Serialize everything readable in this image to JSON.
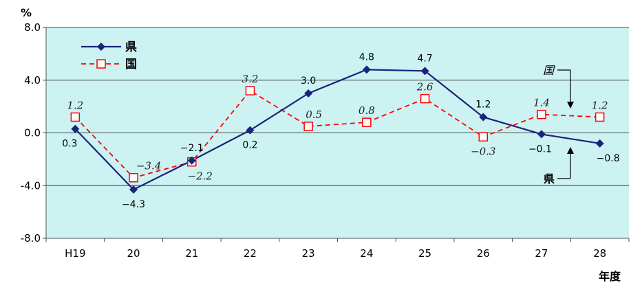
{
  "chart_data": {
    "type": "line",
    "title": "",
    "xlabel": "年度",
    "ylabel": "%",
    "ylim": [
      -8.0,
      8.0
    ],
    "yticks": [
      "8.0",
      "4.0",
      "0.0",
      "-4.0",
      "-8.0"
    ],
    "ytick_values": [
      8.0,
      4.0,
      0.0,
      -4.0,
      -8.0
    ],
    "categories": [
      "H19",
      "20",
      "21",
      "22",
      "23",
      "24",
      "25",
      "26",
      "27",
      "28"
    ],
    "series": [
      {
        "name": "県",
        "color": "#1a237e",
        "marker": "diamond",
        "line": "solid",
        "values": [
          0.3,
          -4.3,
          -2.1,
          0.2,
          3.0,
          4.8,
          4.7,
          1.2,
          -0.1,
          -0.8
        ],
        "labels": [
          "0.3",
          "−4.3",
          "−2.1",
          "0.2",
          "3.0",
          "4.8",
          "4.7",
          "1.2",
          "−0.1",
          "−0.8"
        ]
      },
      {
        "name": "国",
        "color": "#ff0000",
        "marker": "square-open",
        "line": "dashed",
        "values": [
          1.2,
          -3.4,
          -2.2,
          3.2,
          0.5,
          0.8,
          2.6,
          -0.3,
          1.4,
          1.2
        ],
        "labels": [
          "1.2",
          "−3.4",
          "−2.2",
          "3.2",
          "0.5",
          "0.8",
          "2.6",
          "−0.3",
          "1.4",
          "1.2"
        ]
      }
    ],
    "legend": {
      "placement": "top-left",
      "entries": [
        "県",
        "国"
      ]
    },
    "annotations": [
      {
        "text": "国",
        "series": "国"
      },
      {
        "text": "県",
        "series": "県"
      }
    ],
    "plot_background": "#ccf2f2",
    "grid": "horizontal"
  }
}
